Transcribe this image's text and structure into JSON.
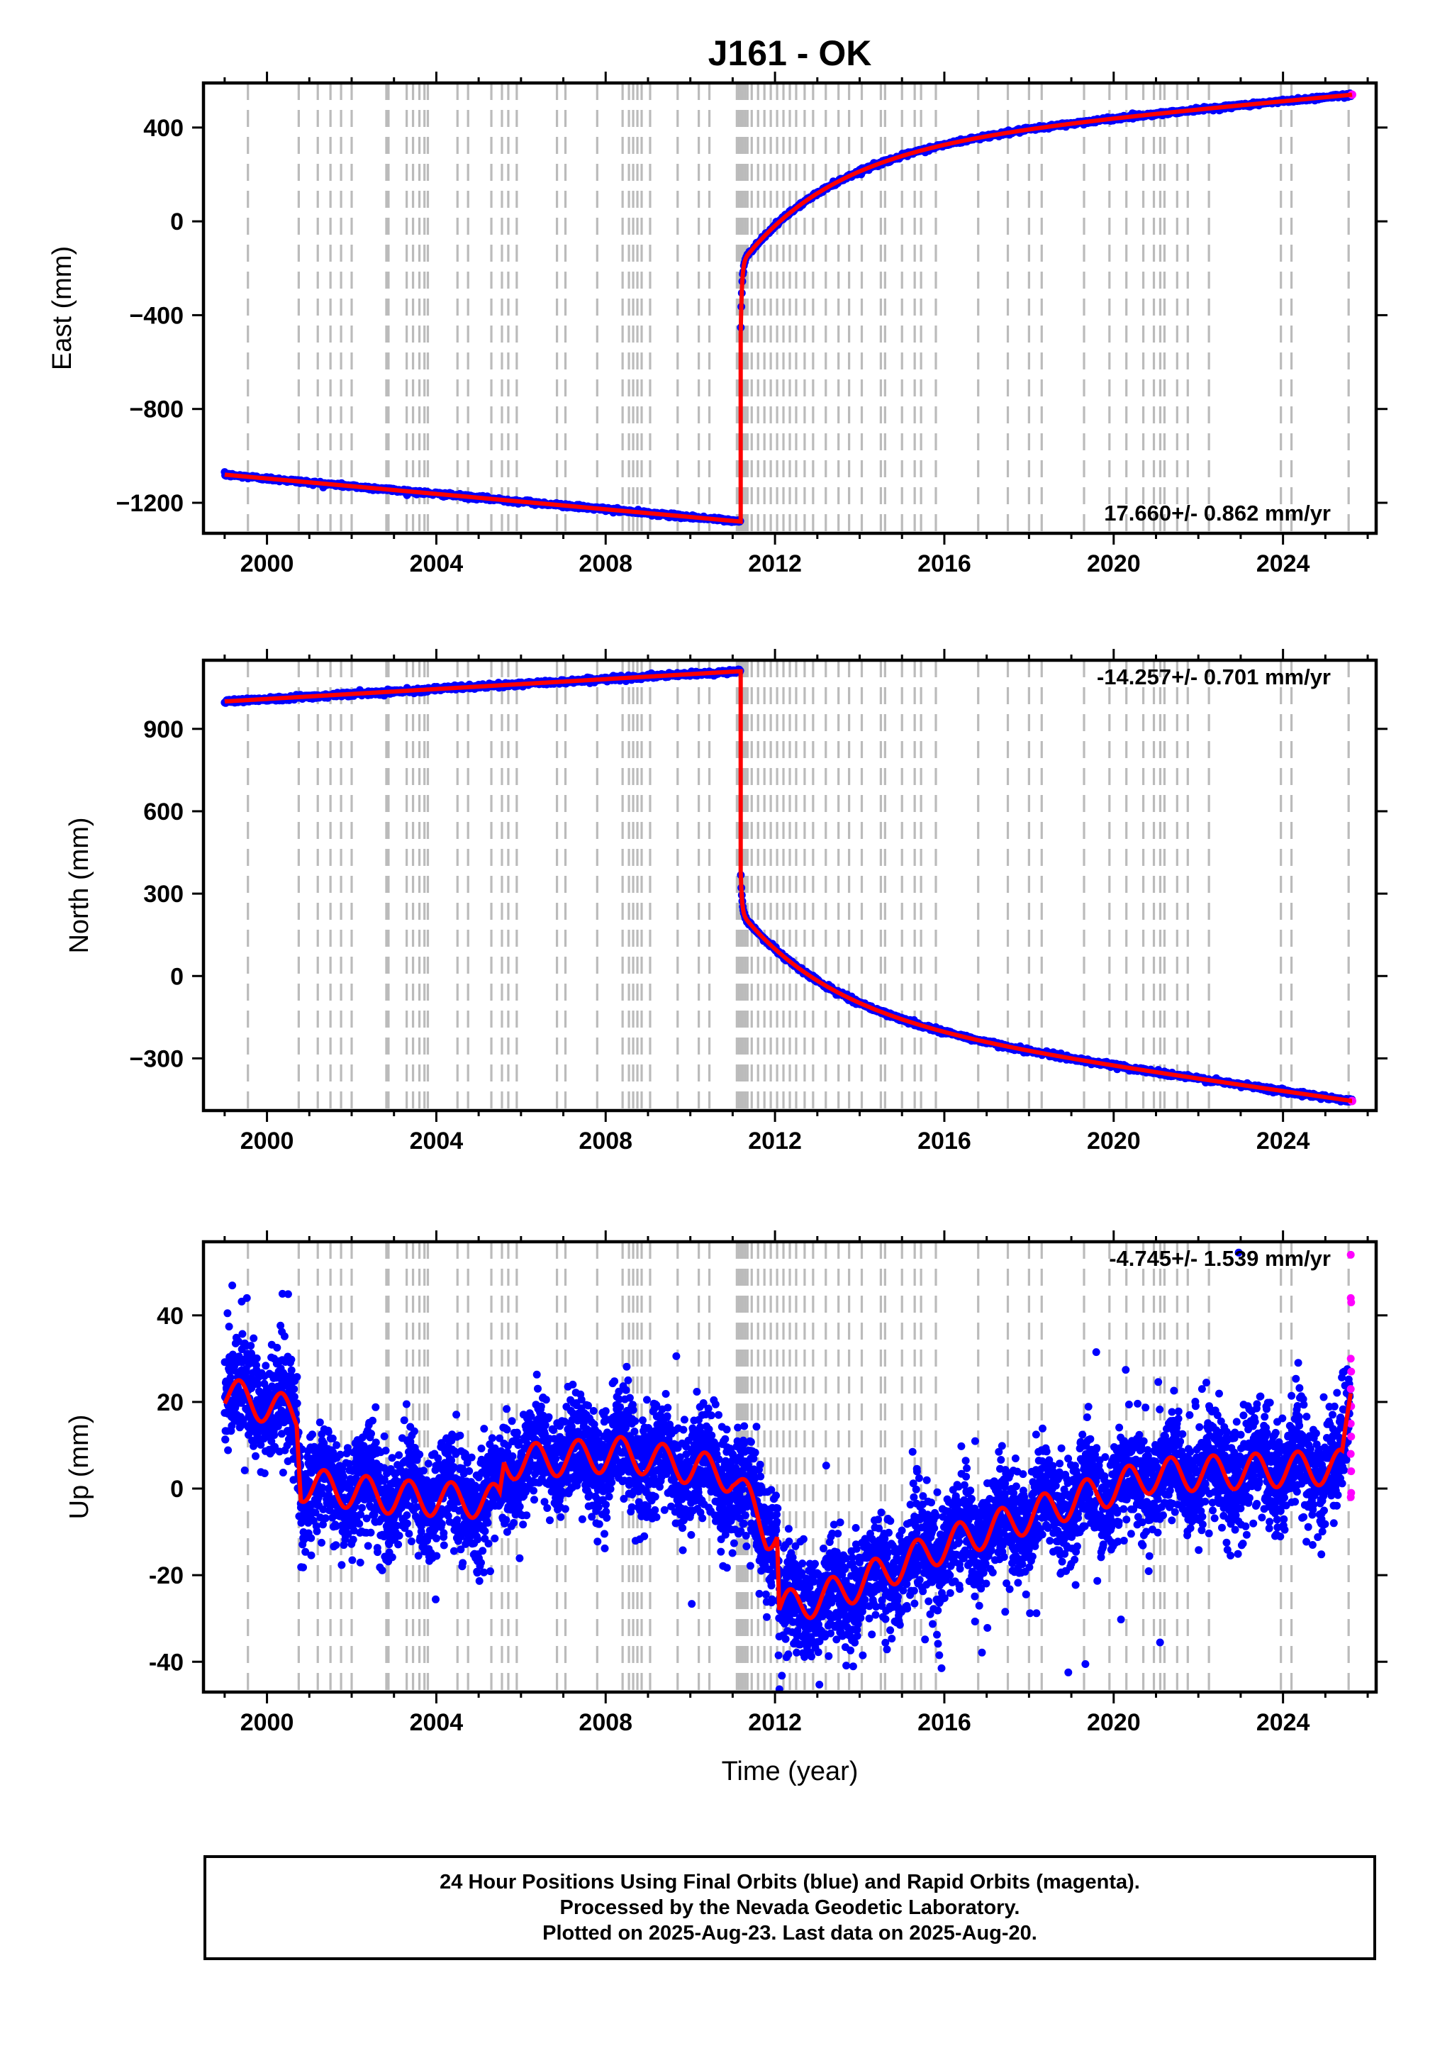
{
  "title": "J161 - OK",
  "xlabel": "Time (year)",
  "caption": [
    "24 Hour Positions Using Final Orbits (blue) and Rapid Orbits (magenta).",
    "Processed by the Nevada Geodetic Laboratory.",
    "Plotted on 2025-Aug-23. Last data on 2025-Aug-20."
  ],
  "colors": {
    "final": "#0000ff",
    "rapid": "#ff00ff",
    "model": "#ff0000",
    "event_lines": "#bbbbbb"
  },
  "event_lines": [
    1999.55,
    2000.75,
    2001.2,
    2001.5,
    2001.75,
    2002.0,
    2002.82,
    2002.87,
    2003.3,
    2003.45,
    2003.6,
    2003.72,
    2003.8,
    2004.5,
    2004.75,
    2005.3,
    2005.55,
    2005.7,
    2005.9,
    2006.85,
    2007.05,
    2007.8,
    2008.4,
    2008.55,
    2008.65,
    2008.75,
    2008.85,
    2009.05,
    2009.7,
    2010.2,
    2010.45,
    2011.1,
    2011.15,
    2011.2,
    2011.25,
    2011.3,
    2011.35,
    2011.45,
    2011.6,
    2011.75,
    2011.9,
    2012.05,
    2012.2,
    2012.35,
    2012.5,
    2012.7,
    2012.9,
    2013.2,
    2013.5,
    2013.75,
    2014.05,
    2014.5,
    2014.6,
    2015.0,
    2015.3,
    2015.45,
    2015.8,
    2016.8,
    2017.5,
    2018.0,
    2018.3,
    2019.3,
    2019.9,
    2020.3,
    2020.7,
    2020.95,
    2021.1,
    2021.2,
    2021.5,
    2021.75,
    2022.25,
    2023.95,
    2024.2,
    2025.55
  ],
  "chart_data": [
    {
      "type": "scatter",
      "name": "east",
      "ylabel": "East (mm)",
      "rate_label": "17.660+/- 0.862 mm/yr",
      "xlim": [
        1998.5,
        2026.2
      ],
      "ylim": [
        -1330,
        590
      ],
      "xticks": [
        2000,
        2004,
        2008,
        2012,
        2016,
        2020,
        2024
      ],
      "yticks": [
        400,
        0,
        -400,
        -800,
        -1200
      ],
      "ytick_labels": [
        "400",
        "0",
        "−400",
        "−800",
        "−1200"
      ],
      "start": 1999.0,
      "end": 2025.63,
      "start_value": -1080,
      "rate_pre": -16,
      "event": 2011.19,
      "pre_event_value": -1280,
      "post_event_value": -480,
      "postseismic": [
        {
          "amp": 300,
          "tau": 0.03
        },
        {
          "amp": 480,
          "tau": 2.2
        }
      ],
      "post_rate": 17.66,
      "last_value": 540,
      "scatter_sd": 4
    },
    {
      "type": "scatter",
      "name": "north",
      "ylabel": "North (mm)",
      "rate_label": "-14.257+/- 0.701 mm/yr",
      "xlim": [
        1998.5,
        2026.2
      ],
      "ylim": [
        -490,
        1150
      ],
      "xticks": [
        2000,
        2004,
        2008,
        2012,
        2016,
        2020,
        2024
      ],
      "yticks": [
        900,
        600,
        300,
        0,
        -300
      ],
      "ytick_labels": [
        "900",
        "600",
        "300",
        "0",
        "−300"
      ],
      "start": 1999.0,
      "end": 2025.63,
      "start_value": 1000,
      "rate_pre": 9,
      "event": 2011.19,
      "pre_event_value": 1110,
      "post_event_value": 380,
      "postseismic": [
        {
          "amp": -150,
          "tau": 0.03
        },
        {
          "amp": -370,
          "tau": 2.2
        }
      ],
      "post_rate": -14.257,
      "last_value": -455,
      "scatter_sd": 4
    },
    {
      "type": "scatter",
      "name": "up",
      "ylabel": "Up (mm)",
      "rate_label": "-4.745+/- 1.539 mm/yr",
      "xlim": [
        1998.5,
        2026.2
      ],
      "ylim": [
        -47,
        57
      ],
      "xticks": [
        2000,
        2004,
        2008,
        2012,
        2016,
        2020,
        2024
      ],
      "yticks": [
        40,
        20,
        0,
        -20,
        -40
      ],
      "ytick_labels": [
        "40",
        "20",
        "0",
        "-20",
        "-40"
      ],
      "model_knots": [
        [
          1999.0,
          22
        ],
        [
          2000.7,
          17
        ],
        [
          2000.8,
          1
        ],
        [
          2003.0,
          -2
        ],
        [
          2005.5,
          -3
        ],
        [
          2005.6,
          6
        ],
        [
          2008.5,
          8
        ],
        [
          2011.0,
          3
        ],
        [
          2011.8,
          -10
        ],
        [
          2012.05,
          -10
        ],
        [
          2012.1,
          -28
        ],
        [
          2013.5,
          -24
        ],
        [
          2016.0,
          -13
        ],
        [
          2019.0,
          -3
        ],
        [
          2020.9,
          3
        ],
        [
          2025.4,
          5
        ],
        [
          2025.6,
          22
        ]
      ],
      "seasonal_amp": 4,
      "scatter_sd": 6,
      "rapid_points": [
        [
          2025.6,
          54
        ],
        [
          2025.6,
          44
        ],
        [
          2025.61,
          43
        ],
        [
          2025.6,
          30
        ],
        [
          2025.61,
          27
        ],
        [
          2025.6,
          23
        ],
        [
          2025.61,
          19
        ],
        [
          2025.6,
          15
        ],
        [
          2025.61,
          12
        ],
        [
          2025.6,
          8
        ],
        [
          2025.61,
          4
        ],
        [
          2025.6,
          -2
        ],
        [
          2025.61,
          -1
        ]
      ]
    }
  ]
}
